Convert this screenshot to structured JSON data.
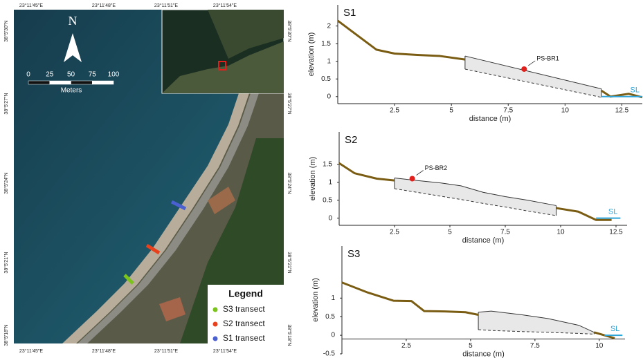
{
  "map": {
    "top_labels": [
      "23°11'45\"E",
      "23°11'48\"E",
      "23°11'51\"E",
      "23°11'54\"E"
    ],
    "bottom_labels": [
      "23°11'45\"E",
      "23°11'48\"E",
      "23°11'51\"E",
      "23°11'54\"E"
    ],
    "left_labels": [
      "38°5'30\"N",
      "38°5'27\"N",
      "38°5'24\"N",
      "38°5'21\"N",
      "38°5'18\"N"
    ],
    "right_labels": [
      "38°5'30\"N",
      "38°5'27\"N",
      "38°5'24\"N",
      "38°5'21\"N",
      "38°5'18\"N"
    ],
    "north": "N",
    "scale_ticks": [
      0,
      25,
      50,
      75,
      100
    ],
    "scale_unit": "Meters",
    "legend": {
      "title": "Legend",
      "items": [
        {
          "label": "S3 transect",
          "color": "#7cc31c"
        },
        {
          "label": "S2 transect",
          "color": "#e8411c"
        },
        {
          "label": "S1 transect",
          "color": "#4a5fd0"
        }
      ]
    }
  },
  "chart_data": [
    {
      "type": "line",
      "title": "S1",
      "xlabel": "distance (m)",
      "ylabel": "elevation (m)",
      "x": [
        0,
        1.7,
        2.5,
        3.5,
        4.5,
        5.6,
        8.6,
        11.6,
        12,
        12.8,
        13.4
      ],
      "series": [
        {
          "color": "#7a5c12",
          "values": [
            2.15,
            1.33,
            1.22,
            1.18,
            1.15,
            1.05,
            null,
            0.17,
            0.0,
            0.08,
            -0.02
          ]
        }
      ],
      "deposit": {
        "x": [
          5.6,
          11.6
        ],
        "top": [
          1.15,
          0.22
        ],
        "base": [
          0.78,
          -0.02
        ]
      },
      "annotations": [
        {
          "text": "PS-BR1",
          "x": 8.2,
          "y": 0.78,
          "color": "#e0201c"
        }
      ],
      "sea_level": {
        "label": "SL",
        "color": "#2fa4d8",
        "x": [
          11.6,
          13.4
        ],
        "y": [
          0,
          0
        ]
      },
      "xlim": [
        0,
        13.4
      ],
      "ylim": [
        -0.2,
        2.6
      ],
      "xaxis_at": -0.2,
      "xticks": [
        2.5,
        5,
        7.5,
        10,
        12.5
      ],
      "yticks": [
        0,
        0.5,
        1,
        1.5,
        2
      ],
      "grid": false
    },
    {
      "type": "line",
      "title": "S2",
      "xlabel": "distance (m)",
      "ylabel": "elevation (m)",
      "x": [
        0,
        0.7,
        1.7,
        2.5,
        6.2,
        9.8,
        10.8,
        11.6,
        12.3
      ],
      "series": [
        {
          "color": "#7a5c12",
          "values": [
            1.53,
            1.25,
            1.1,
            1.05,
            null,
            0.28,
            0.18,
            -0.05,
            -0.05
          ]
        }
      ],
      "deposit": {
        "x": [
          2.5,
          3.5,
          4.6,
          5.5,
          6.5,
          7.5,
          8.5,
          9.8
        ],
        "top": [
          1.12,
          1.05,
          0.98,
          0.9,
          0.72,
          0.6,
          0.5,
          0.35
        ],
        "base": [
          0.82,
          0.72,
          0.61,
          0.52,
          0.41,
          0.31,
          0.2,
          0.07
        ]
      },
      "annotations": [
        {
          "text": "PS-BR2",
          "x": 3.3,
          "y": 1.1,
          "color": "#e0201c"
        }
      ],
      "sea_level": {
        "label": "SL",
        "color": "#2fa4d8",
        "x": [
          11.6,
          12.7
        ],
        "y": [
          0,
          0
        ]
      },
      "xlim": [
        0,
        13
      ],
      "ylim": [
        -0.2,
        2.4
      ],
      "xaxis_at": -0.2,
      "xticks": [
        2.5,
        5,
        7.5,
        10,
        12.5
      ],
      "yticks": [
        0,
        0.5,
        1,
        1.5
      ],
      "grid": false
    },
    {
      "type": "line",
      "title": "S3",
      "xlabel": "distance (m)",
      "ylabel": "elevation (m)",
      "x": [
        0,
        1,
        2,
        2.7,
        3.2,
        4,
        4.8,
        5.3,
        7.5,
        9.8,
        10.3,
        10.6
      ],
      "series": [
        {
          "color": "#7a5c12",
          "values": [
            1.42,
            1.15,
            0.93,
            0.92,
            0.65,
            0.64,
            0.62,
            0.55,
            null,
            0.08,
            -0.02,
            -0.08
          ]
        }
      ],
      "deposit": {
        "x": [
          5.3,
          5.8,
          7,
          8,
          9.2,
          9.8
        ],
        "top": [
          0.62,
          0.65,
          0.55,
          0.45,
          0.27,
          0.08
        ],
        "base": [
          0.15,
          0.13,
          0.1,
          0.08,
          0.05,
          0.03
        ]
      },
      "annotations": [],
      "sea_level": {
        "label": "SL",
        "color": "#2fa4d8",
        "x": [
          10.2,
          10.9
        ],
        "y": [
          0,
          0
        ]
      },
      "xlim": [
        0,
        11
      ],
      "ylim": [
        -0.5,
        2.4
      ],
      "xaxis_at": -0.1,
      "xticks": [
        2.5,
        5,
        7.5,
        10
      ],
      "yticks": [
        -0.5,
        0,
        0.5,
        1
      ],
      "grid": false
    }
  ]
}
